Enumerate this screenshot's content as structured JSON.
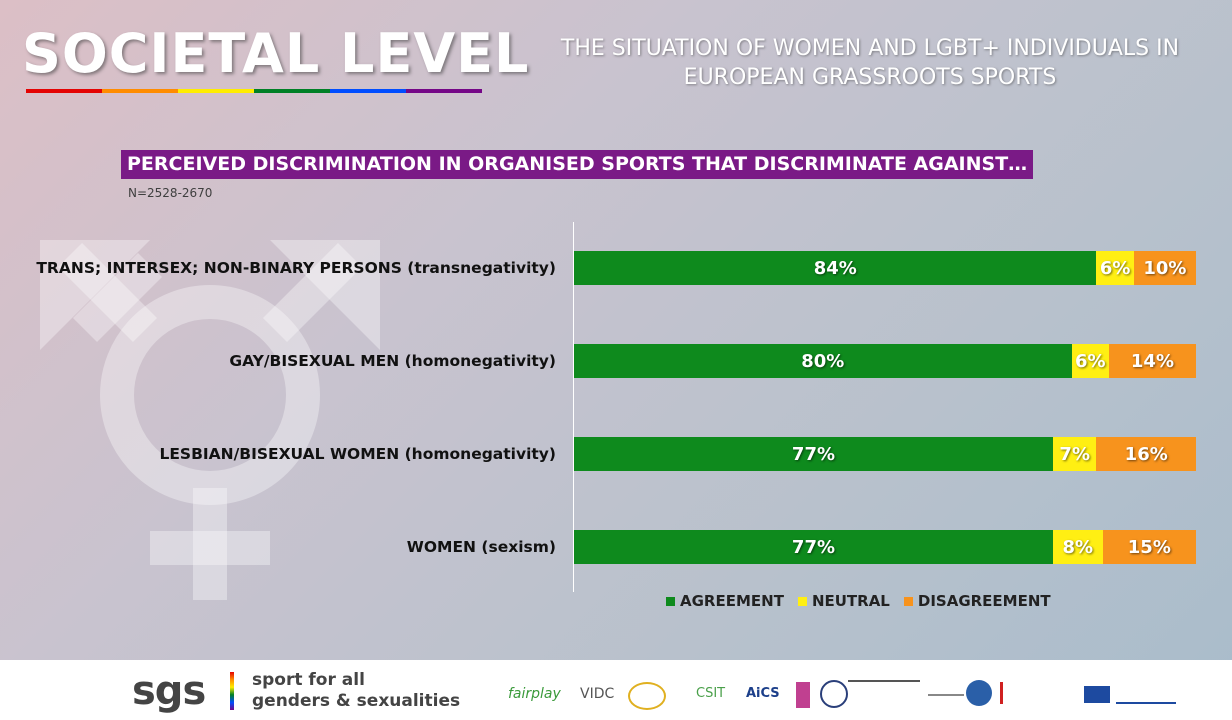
{
  "header": {
    "main_title": "SOCIETAL LEVEL",
    "subtitle_line1": "THE SITUATION OF WOMEN AND LGBT+ INDIVIDUALS IN",
    "subtitle_line2": "EUROPEAN GRASSROOTS SPORTS",
    "rainbow_colors": [
      "#e40303",
      "#ff8c00",
      "#ffed00",
      "#008026",
      "#004dff",
      "#750787"
    ]
  },
  "chart_data": {
    "type": "bar",
    "orientation": "horizontal",
    "stacked": true,
    "title": "PERCEIVED DISCRIMINATION IN ORGANISED SPORTS THAT DISCRIMINATE AGAINST…",
    "sample_note": "N=2528-2670",
    "categories": [
      "TRANS; INTERSEX; NON-BINARY PERSONS (transnegativity)",
      "GAY/BISEXUAL MEN (homonegativity)",
      "LESBIAN/BISEXUAL WOMEN (homonegativity)",
      "WOMEN (sexism)"
    ],
    "series": [
      {
        "name": "AGREEMENT",
        "color": "#0e8a1d",
        "values": [
          84,
          80,
          77,
          77
        ],
        "labels": [
          "84%",
          "80%",
          "77%",
          "77%"
        ]
      },
      {
        "name": "NEUTRAL",
        "color": "#ffef13",
        "values": [
          6,
          6,
          7,
          8
        ],
        "labels": [
          "6%",
          "6%",
          "7%",
          "8%"
        ]
      },
      {
        "name": "DISAGREEMENT",
        "color": "#f7931d",
        "values": [
          10,
          14,
          16,
          15
        ],
        "labels": [
          "10%",
          "14%",
          "16%",
          "15%"
        ]
      }
    ],
    "xlim": [
      0,
      100
    ],
    "legend_position": "bottom"
  },
  "footer": {
    "logo": "sgs",
    "tagline_line1": "sport for all",
    "tagline_line2": "genders & sexualities",
    "partners": [
      "fairplay",
      "VIDC",
      "CSIT",
      "AiCS"
    ]
  }
}
